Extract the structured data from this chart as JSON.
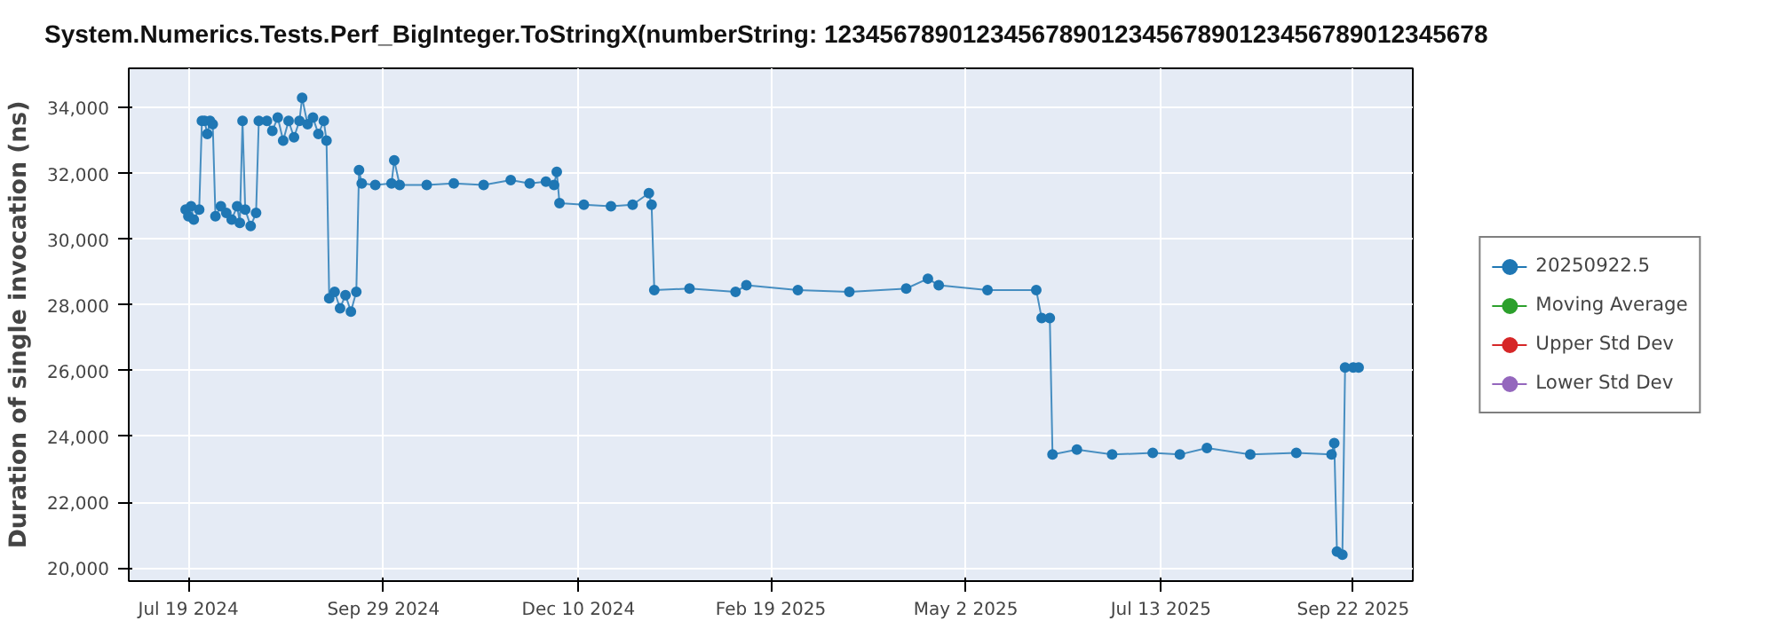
{
  "chart_data": {
    "type": "line",
    "title": "System.Numerics.Tests.Perf_BigInteger.ToStringX(numberString: 123456789012345678901234567890123456789012345678",
    "ylabel": "Duration of single invocation (ns)",
    "x": [
      "2024-07-18",
      "2024-07-19",
      "2024-07-20",
      "2024-07-21",
      "2024-07-23",
      "2024-07-24",
      "2024-07-25",
      "2024-07-26",
      "2024-07-27",
      "2024-07-28",
      "2024-07-29",
      "2024-07-31",
      "2024-08-02",
      "2024-08-04",
      "2024-08-06",
      "2024-08-07",
      "2024-08-08",
      "2024-08-09",
      "2024-08-11",
      "2024-08-13",
      "2024-08-14",
      "2024-08-17",
      "2024-08-19",
      "2024-08-21",
      "2024-08-23",
      "2024-08-25",
      "2024-08-27",
      "2024-08-29",
      "2024-08-30",
      "2024-09-01",
      "2024-09-03",
      "2024-09-05",
      "2024-09-07",
      "2024-09-08",
      "2024-09-09",
      "2024-09-11",
      "2024-09-13",
      "2024-09-15",
      "2024-09-17",
      "2024-09-19",
      "2024-09-20",
      "2024-09-21",
      "2024-09-26",
      "2024-10-02",
      "2024-10-03",
      "2024-10-05",
      "2024-10-15",
      "2024-10-25",
      "2024-11-05",
      "2024-11-15",
      "2024-11-22",
      "2024-11-28",
      "2024-12-01",
      "2024-12-02",
      "2024-12-03",
      "2024-12-12",
      "2024-12-22",
      "2024-12-30",
      "2025-01-05",
      "2025-01-06",
      "2025-01-07",
      "2025-01-20",
      "2025-02-06",
      "2025-02-10",
      "2025-03-01",
      "2025-03-20",
      "2025-04-10",
      "2025-04-18",
      "2025-04-22",
      "2025-05-10",
      "2025-05-28",
      "2025-05-30",
      "2025-06-02",
      "2025-06-03",
      "2025-06-12",
      "2025-06-25",
      "2025-07-10",
      "2025-07-20",
      "2025-07-30",
      "2025-08-15",
      "2025-09-01",
      "2025-09-14",
      "2025-09-15",
      "2025-09-16",
      "2025-09-18",
      "2025-09-19",
      "2025-09-22",
      "2025-09-24"
    ],
    "series": [
      {
        "name": "20250922.5",
        "color": "#1f77b4",
        "values": [
          30900,
          30700,
          31000,
          30600,
          30900,
          33600,
          33600,
          33200,
          33600,
          33500,
          30700,
          31000,
          30800,
          30600,
          31000,
          30500,
          33600,
          30900,
          30400,
          30800,
          33600,
          33600,
          33300,
          33700,
          33000,
          33600,
          33100,
          33600,
          34300,
          33500,
          33700,
          33200,
          33600,
          33000,
          28200,
          28400,
          27900,
          28300,
          27800,
          28400,
          32100,
          31700,
          31650,
          31700,
          32400,
          31650,
          31650,
          31700,
          31650,
          31800,
          31700,
          31750,
          31650,
          32050,
          31100,
          31050,
          31000,
          31050,
          31400,
          31050,
          28450,
          28500,
          28400,
          28600,
          28450,
          28400,
          28500,
          28800,
          28600,
          28450,
          28450,
          27600,
          27600,
          23450,
          23600,
          23450,
          23500,
          23450,
          23650,
          23450,
          23500,
          23450,
          23800,
          20500,
          20400,
          26100,
          26100,
          26100
        ]
      },
      {
        "name": "Moving Average",
        "color": "#2ca02c",
        "values": [
          null,
          null,
          null,
          null,
          null,
          null,
          null,
          null,
          null,
          null,
          null,
          null,
          null,
          null,
          null,
          null,
          null,
          null,
          null,
          null,
          null,
          null,
          null,
          null,
          null,
          null,
          null,
          null,
          null,
          null,
          null,
          null,
          null,
          null,
          null,
          null,
          null,
          null,
          null,
          null,
          null,
          null,
          null,
          null,
          null,
          null,
          null,
          null,
          null,
          null,
          null,
          null,
          null,
          null,
          null,
          null,
          null,
          null,
          null,
          null,
          null,
          null,
          null,
          null,
          null,
          null,
          null,
          null,
          null,
          null,
          null,
          null,
          null,
          null,
          null,
          null,
          null,
          null,
          null,
          null,
          null,
          null,
          null,
          null,
          null,
          null,
          null,
          null
        ]
      },
      {
        "name": "Upper Std Dev",
        "color": "#d62728",
        "values": [
          null,
          null,
          null,
          null,
          null,
          null,
          null,
          null,
          null,
          null,
          null,
          null,
          null,
          null,
          null,
          null,
          null,
          null,
          null,
          null,
          null,
          null,
          null,
          null,
          null,
          null,
          null,
          null,
          null,
          null,
          null,
          null,
          null,
          null,
          null,
          null,
          null,
          null,
          null,
          null,
          null,
          null,
          null,
          null,
          null,
          null,
          null,
          null,
          null,
          null,
          null,
          null,
          null,
          null,
          null,
          null,
          null,
          null,
          null,
          null,
          null,
          null,
          null,
          null,
          null,
          null,
          null,
          null,
          null,
          null,
          null,
          null,
          null,
          null,
          null,
          null,
          null,
          null,
          null,
          null,
          null,
          null,
          null,
          null,
          null,
          null,
          null,
          null
        ]
      },
      {
        "name": "Lower Std Dev",
        "color": "#9467bd",
        "values": [
          null,
          null,
          null,
          null,
          null,
          null,
          null,
          null,
          null,
          null,
          null,
          null,
          null,
          null,
          null,
          null,
          null,
          null,
          null,
          null,
          null,
          null,
          null,
          null,
          null,
          null,
          null,
          null,
          null,
          null,
          null,
          null,
          null,
          null,
          null,
          null,
          null,
          null,
          null,
          null,
          null,
          null,
          null,
          null,
          null,
          null,
          null,
          null,
          null,
          null,
          null,
          null,
          null,
          null,
          null,
          null,
          null,
          null,
          null,
          null,
          null,
          null,
          null,
          null,
          null,
          null,
          null,
          null,
          null,
          null,
          null,
          null,
          null,
          null,
          null,
          null,
          null,
          null,
          null,
          null,
          null,
          null,
          null,
          null,
          null,
          null,
          null,
          null
        ]
      }
    ],
    "xlim": [
      "2024-06-27",
      "2025-10-14"
    ],
    "xticks": [
      {
        "value": "2024-07-19",
        "label": "Jul 19 2024"
      },
      {
        "value": "2024-09-29",
        "label": "Sep 29 2024"
      },
      {
        "value": "2024-12-10",
        "label": "Dec 10 2024"
      },
      {
        "value": "2025-02-19",
        "label": "Feb 19 2025"
      },
      {
        "value": "2025-05-02",
        "label": "May 2 2025"
      },
      {
        "value": "2025-07-13",
        "label": "Jul 13 2025"
      },
      {
        "value": "2025-09-22",
        "label": "Sep 22 2025"
      }
    ],
    "ylim": [
      19600,
      35200
    ],
    "yticks": [
      {
        "value": 20000,
        "label": "20,000"
      },
      {
        "value": 22000,
        "label": "22,000"
      },
      {
        "value": 24000,
        "label": "24,000"
      },
      {
        "value": 26000,
        "label": "26,000"
      },
      {
        "value": 28000,
        "label": "28,000"
      },
      {
        "value": 30000,
        "label": "30,000"
      },
      {
        "value": 32000,
        "label": "32,000"
      },
      {
        "value": 34000,
        "label": "34,000"
      }
    ],
    "grid": true,
    "legend": "right",
    "marker": "circle",
    "line_style": "solid"
  }
}
